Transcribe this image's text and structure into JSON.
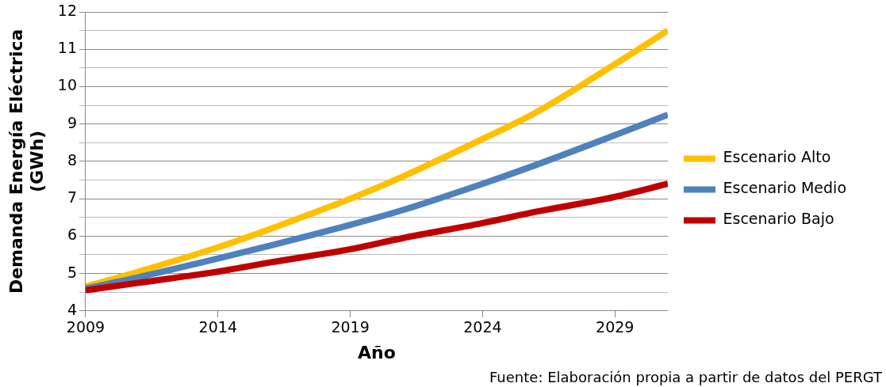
{
  "chart_data": {
    "type": "line",
    "xlabel": "Año",
    "ylabel": "Demanda Energía Eléctrica\n(GWh)",
    "x": [
      2009,
      2011,
      2014,
      2016,
      2019,
      2021,
      2024,
      2026,
      2029,
      2031
    ],
    "series": [
      {
        "name": "Escenario Alto",
        "color": "#ffc000",
        "values": [
          4.65,
          5.05,
          5.7,
          6.2,
          7.0,
          7.6,
          8.6,
          9.3,
          10.6,
          11.5
        ]
      },
      {
        "name": "Escenario Medio",
        "color": "#4f81bd",
        "values": [
          4.6,
          4.9,
          5.4,
          5.75,
          6.3,
          6.7,
          7.4,
          7.9,
          8.7,
          9.25
        ]
      },
      {
        "name": "Escenario Bajo",
        "color": "#c00000",
        "values": [
          4.55,
          4.75,
          5.05,
          5.3,
          5.65,
          5.95,
          6.35,
          6.65,
          7.05,
          7.4
        ]
      }
    ],
    "xlim": [
      2009,
      2031
    ],
    "xticks": [
      2009,
      2014,
      2019,
      2024,
      2029
    ],
    "ylim": [
      4,
      12
    ],
    "yticks": [
      4,
      {
        "value": 4.5,
        "label": null
      },
      5,
      {
        "value": 5.5,
        "label": null
      },
      6,
      {
        "value": 6.5,
        "label": null
      },
      7,
      {
        "value": 7.5,
        "label": null
      },
      8,
      {
        "value": 8.5,
        "label": null
      },
      9,
      {
        "value": 9.5,
        "label": null
      },
      10,
      {
        "value": 10.5,
        "label": null
      },
      11,
      {
        "value": 11.5,
        "label": null
      },
      12
    ],
    "grid": "y",
    "legend": "right",
    "marker": "none",
    "line_style": "solid",
    "annotations": [
      "Fuente: Elaboración propia a partir de datos del PERGT"
    ]
  }
}
